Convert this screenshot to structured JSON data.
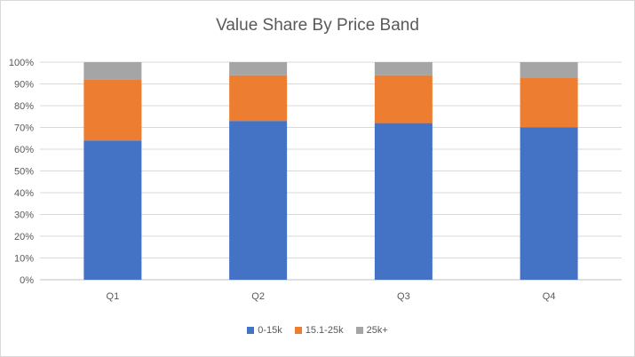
{
  "chart_data": {
    "type": "bar",
    "stacked": true,
    "title": "Value Share By Price Band",
    "categories": [
      "Q1",
      "Q2",
      "Q3",
      "Q4"
    ],
    "series": [
      {
        "name": "0-15k",
        "color": "#4472c4",
        "values": [
          64,
          73,
          72,
          70
        ]
      },
      {
        "name": "15.1-25k",
        "color": "#ed7d31",
        "values": [
          28,
          21,
          22,
          23
        ]
      },
      {
        "name": "25k+",
        "color": "#a5a5a5",
        "values": [
          8,
          6,
          6,
          7
        ]
      }
    ],
    "y_ticks": [
      "0%",
      "10%",
      "20%",
      "30%",
      "40%",
      "50%",
      "60%",
      "70%",
      "80%",
      "90%",
      "100%"
    ],
    "ylim": [
      0,
      100
    ],
    "xlabel": "",
    "ylabel": "",
    "grid": true,
    "legend_position": "bottom"
  }
}
